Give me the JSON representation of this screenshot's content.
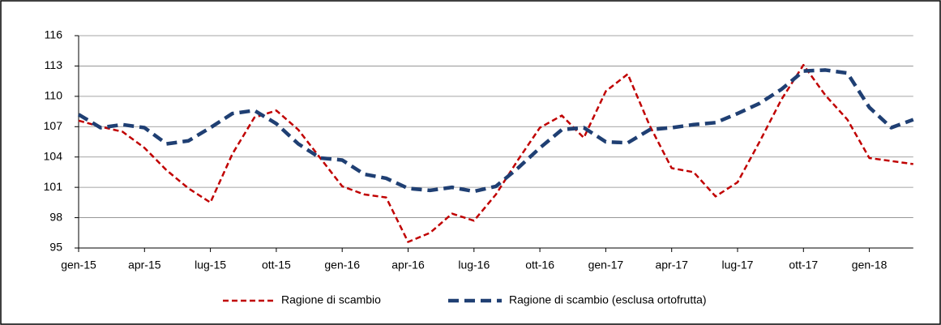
{
  "chart_data": {
    "type": "line",
    "categories": [
      "gen-15",
      null,
      null,
      "apr-15",
      null,
      null,
      "lug-15",
      null,
      null,
      "ott-15",
      null,
      null,
      "gen-16",
      null,
      null,
      "apr-16",
      null,
      null,
      "lug-16",
      null,
      null,
      "ott-16",
      null,
      null,
      "gen-17",
      null,
      null,
      "apr-17",
      null,
      null,
      "lug-17",
      null,
      null,
      "ott-17",
      null,
      null,
      "gen-18",
      null,
      null
    ],
    "series": [
      {
        "name": "Ragione di scambio",
        "color": "#c00000",
        "values": [
          107.6,
          107.0,
          106.5,
          104.9,
          102.7,
          100.9,
          99.5,
          104.3,
          107.9,
          108.6,
          106.7,
          103.9,
          101.1,
          100.3,
          100.0,
          95.6,
          96.5,
          98.4,
          97.7,
          100.3,
          103.7,
          106.9,
          108.1,
          105.9,
          110.5,
          112.2,
          107.1,
          102.9,
          102.5,
          100.1,
          101.5,
          105.5,
          109.7,
          113.1,
          110.1,
          107.7,
          103.9,
          103.6,
          103.3
        ]
      },
      {
        "name": "Ragione di scambio (esclusa ortofrutta)",
        "color": "#1f3f73",
        "values": [
          108.2,
          106.9,
          107.2,
          106.9,
          105.3,
          105.6,
          106.9,
          108.3,
          108.6,
          107.3,
          105.3,
          103.9,
          103.7,
          102.3,
          101.9,
          100.9,
          100.7,
          101.0,
          100.6,
          101.1,
          102.9,
          104.9,
          106.7,
          106.9,
          105.5,
          105.4,
          106.7,
          106.9,
          107.2,
          107.4,
          108.3,
          109.3,
          110.7,
          112.5,
          112.6,
          112.3,
          108.9,
          106.9,
          107.7
        ]
      }
    ],
    "ylim": [
      95,
      116
    ],
    "yticks": [
      95,
      98,
      101,
      104,
      107,
      110,
      113,
      116
    ],
    "grid": true
  }
}
